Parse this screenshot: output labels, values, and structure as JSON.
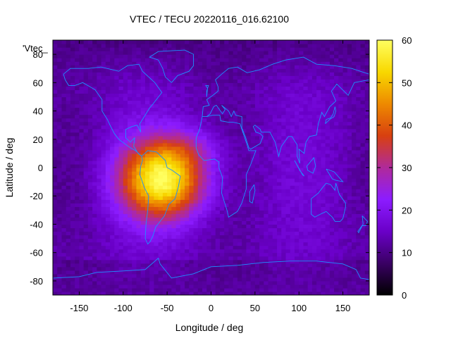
{
  "chart_data": {
    "type": "heatmap",
    "title": "VTEC / TECU 20220116_016.62100",
    "xlabel": "Longitude / deg",
    "ylabel": "Latitude / deg",
    "series_key": "'Vtec_",
    "xlim": [
      -180,
      180
    ],
    "ylim": [
      -90,
      90
    ],
    "xticks": [
      -150,
      -100,
      -50,
      0,
      50,
      100,
      150
    ],
    "yticks": [
      -80,
      -60,
      -40,
      -20,
      0,
      20,
      40,
      60,
      80
    ],
    "ytick_labels": [
      "-80",
      "-60",
      "-40",
      "-20",
      "0",
      "20",
      "40",
      "60",
      "80"
    ],
    "colorbar": {
      "range": [
        0,
        60
      ],
      "ticks": [
        0,
        10,
        20,
        30,
        40,
        50,
        60
      ],
      "palette": [
        "#000000",
        "#3a0064",
        "#6a00c8",
        "#8c1cff",
        "#b02a9a",
        "#d84010",
        "#ee8a00",
        "#f8d800",
        "#ffff60"
      ]
    },
    "tec_peak": {
      "lon": -55,
      "lat": -8,
      "value": 58,
      "spread_lon": 48,
      "spread_lat": 27
    },
    "background_tec": 14,
    "coastline_color": "#1e90ff"
  }
}
